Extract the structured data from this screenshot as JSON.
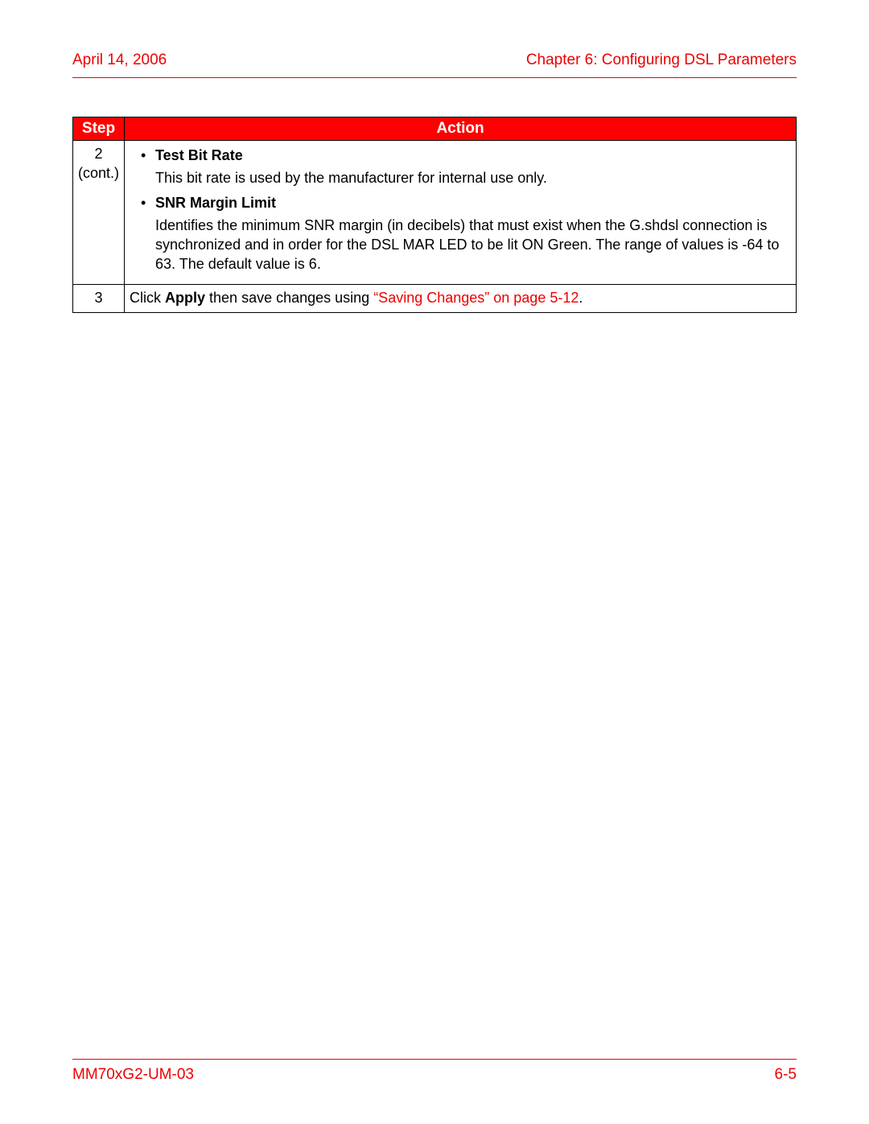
{
  "header": {
    "date": "April 14, 2006",
    "chapter": "Chapter 6: Configuring DSL Parameters"
  },
  "colors": {
    "accent": "#ec0000",
    "table_header_bg": "#ff0000",
    "table_header_fg": "#ffffff",
    "border": "#000000",
    "text": "#000000",
    "link": "#ec0000",
    "page_bg": "#ffffff"
  },
  "table": {
    "columns": {
      "step": "Step",
      "action": "Action"
    },
    "rows": [
      {
        "step_line1": "2",
        "step_line2": "(cont.)",
        "bullets": [
          {
            "title": "Test Bit Rate",
            "body": "This bit rate is used by the manufacturer for internal use only."
          },
          {
            "title": "SNR Margin Limit",
            "body": "Identifies the minimum SNR margin (in decibels) that must exist when the G.shdsl connection is synchronized and in order for the DSL MAR LED to be lit ON Green. The range of values is -64 to 63. The default value is 6."
          }
        ]
      },
      {
        "step_line1": "3",
        "action_prefix": "Click ",
        "action_bold": "Apply",
        "action_mid": " then save changes using ",
        "action_link": "“Saving Changes” on page 5-12",
        "action_suffix": "."
      }
    ]
  },
  "footer": {
    "doc_id": "MM70xG2-UM-03",
    "page_num": "6-5"
  }
}
